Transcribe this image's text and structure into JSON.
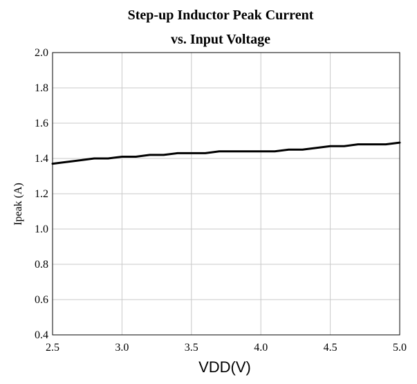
{
  "chart_data": {
    "type": "line",
    "title": [
      "Step-up Inductor Peak Current",
      "vs. Input Voltage"
    ],
    "xlabel": "VDD(V)",
    "ylabel": "Ipeak (A)",
    "xlim": [
      2.5,
      5.0
    ],
    "ylim": [
      0.4,
      2.0
    ],
    "xticks": [
      2.5,
      3.0,
      3.5,
      4.0,
      4.5,
      5.0
    ],
    "xtick_labels": [
      "2.5",
      "3.0",
      "3.5",
      "4.0",
      "4.5",
      "5.0"
    ],
    "yticks": [
      0.4,
      0.6,
      0.8,
      1.0,
      1.2,
      1.4,
      1.6,
      1.8,
      2.0
    ],
    "ytick_labels": [
      "0.4",
      "0.6",
      "0.8",
      "1.0",
      "1.2",
      "1.4",
      "1.6",
      "1.8",
      "2.0"
    ],
    "grid": true,
    "legend": "none",
    "series": [
      {
        "color": "#000000",
        "x": [
          2.5,
          2.6,
          2.7,
          2.8,
          2.9,
          3.0,
          3.1,
          3.2,
          3.3,
          3.4,
          3.5,
          3.6,
          3.7,
          3.8,
          3.9,
          4.0,
          4.1,
          4.2,
          4.3,
          4.4,
          4.5,
          4.6,
          4.7,
          4.8,
          4.9,
          5.0
        ],
        "y": [
          1.37,
          1.38,
          1.39,
          1.4,
          1.4,
          1.41,
          1.41,
          1.42,
          1.42,
          1.43,
          1.43,
          1.43,
          1.44,
          1.44,
          1.44,
          1.44,
          1.44,
          1.45,
          1.45,
          1.46,
          1.47,
          1.47,
          1.48,
          1.48,
          1.48,
          1.49
        ]
      }
    ]
  }
}
